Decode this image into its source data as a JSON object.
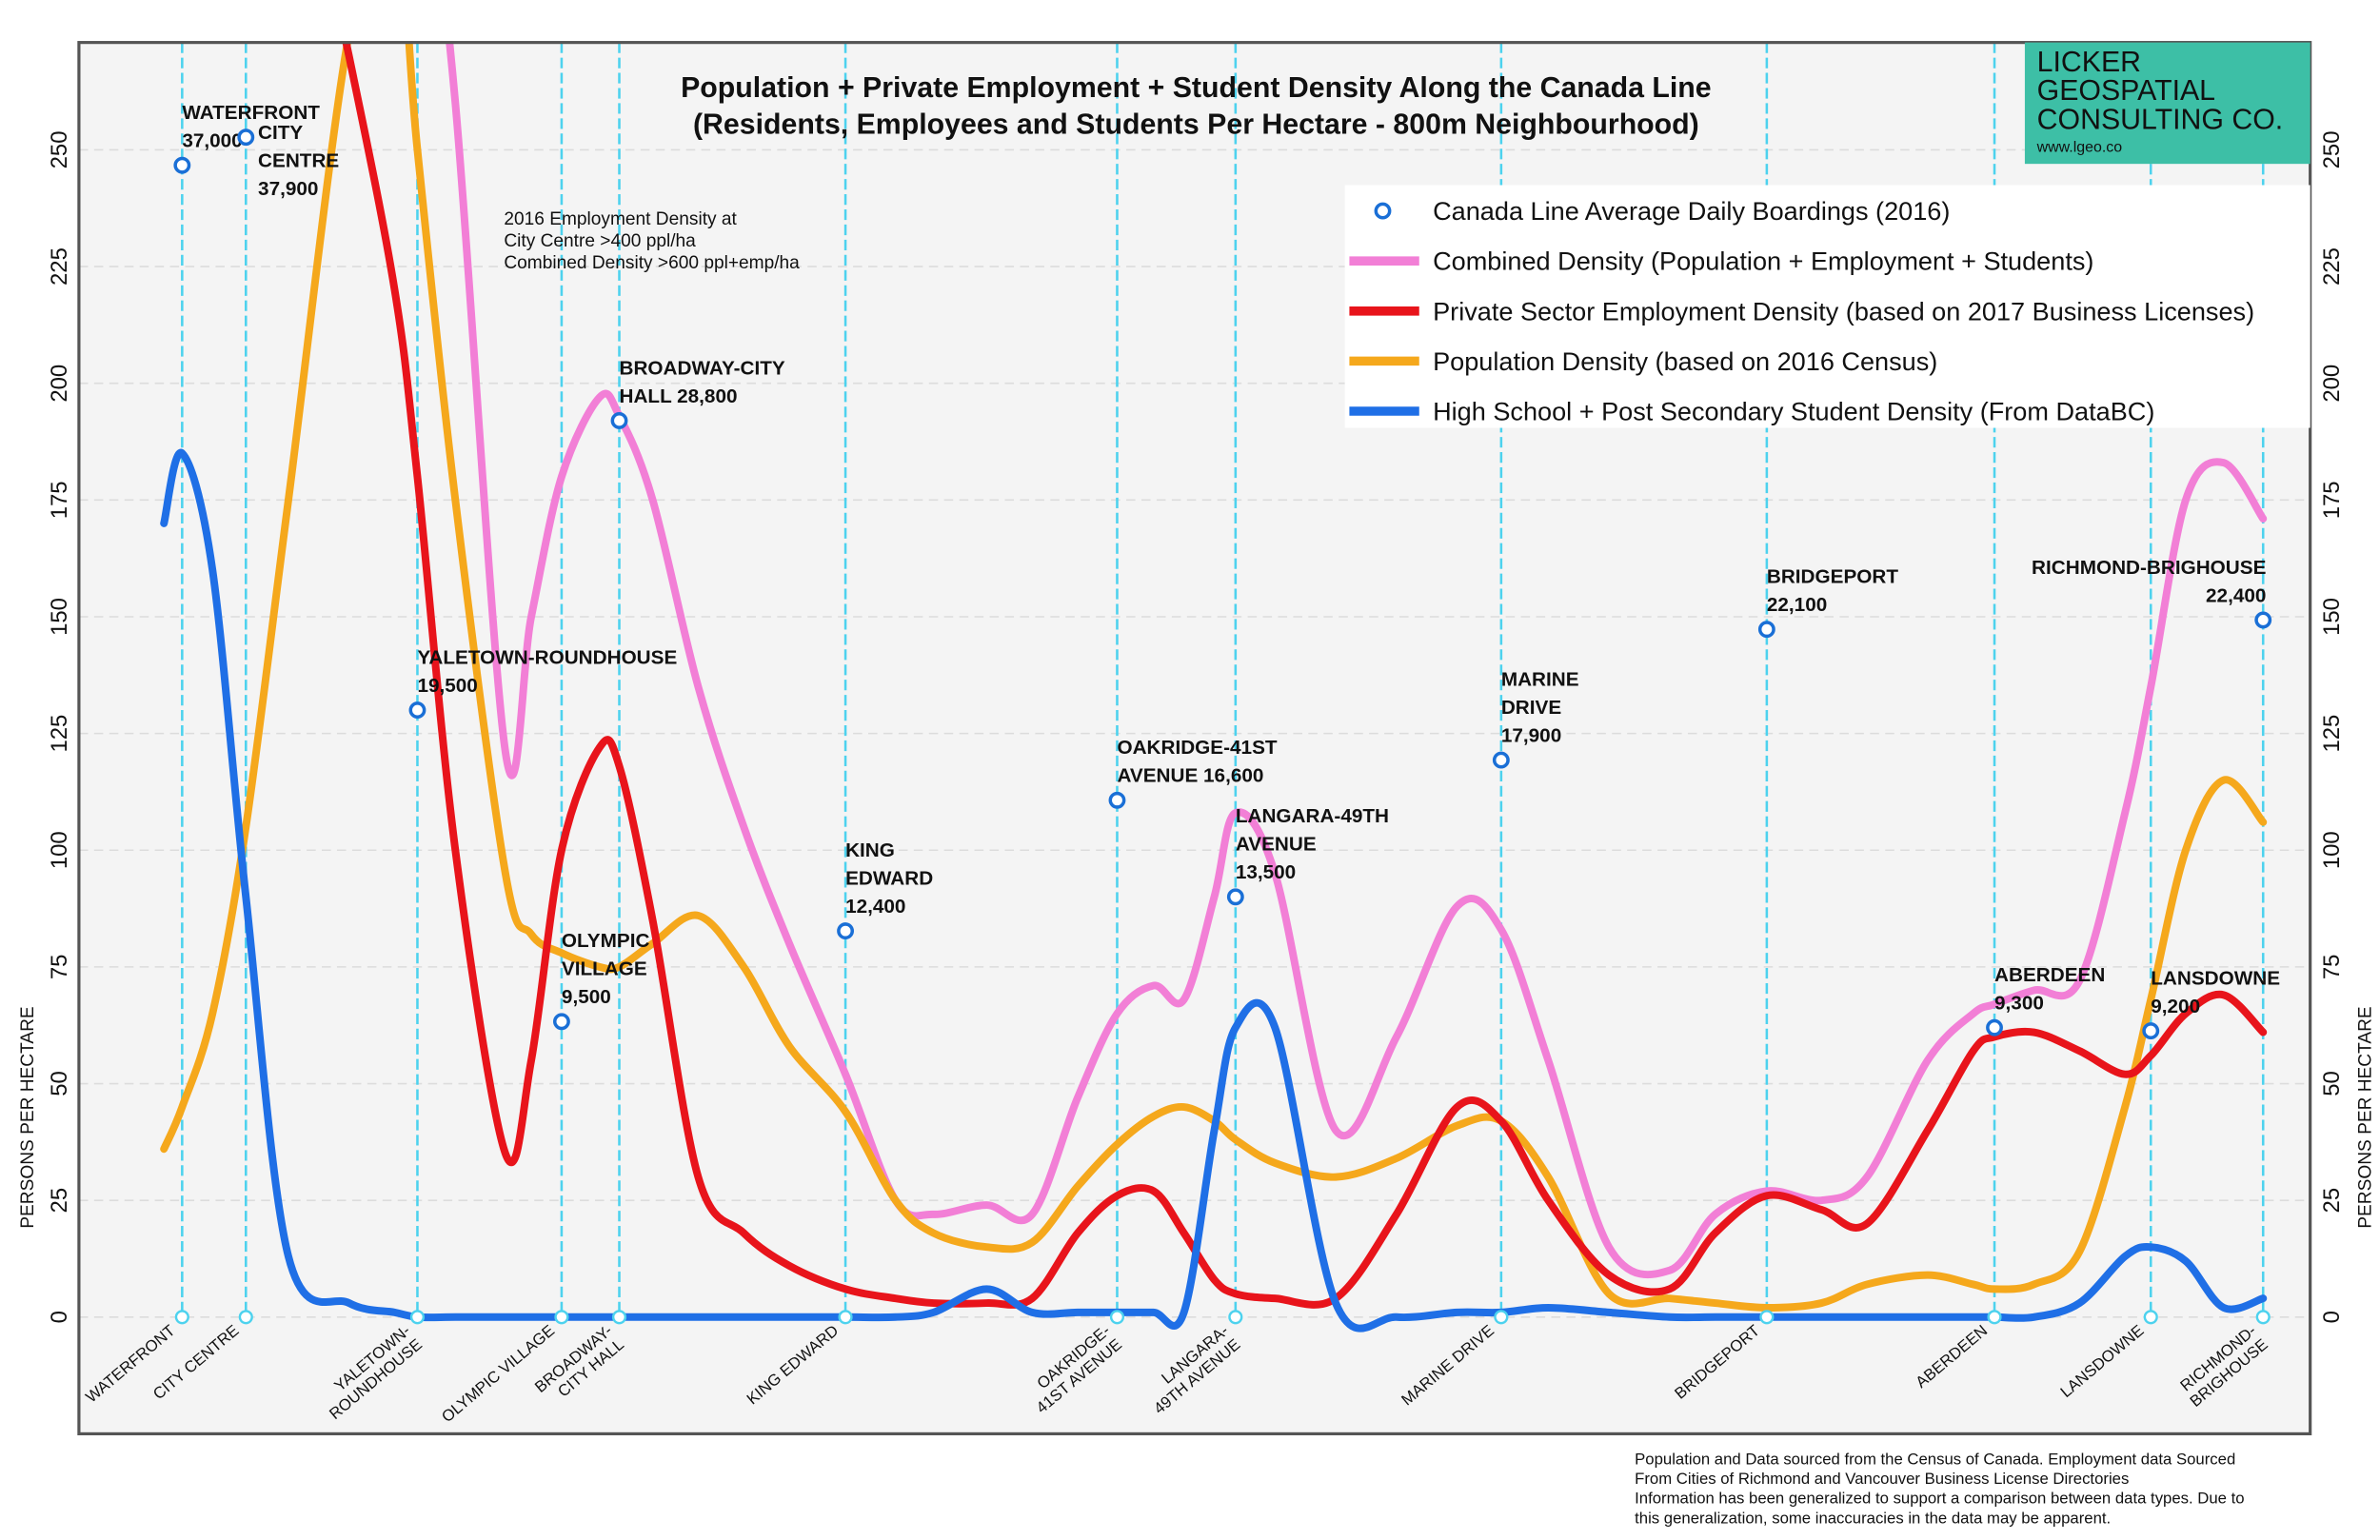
{
  "chart_data": {
    "type": "line",
    "title": [
      "Population + Private Employment + Student Density  Along the Canada Line",
      "(Residents, Employees and Students Per Hectare - 800m Neighbourhood)"
    ],
    "ylabel": "PERSONS PER HECTARE",
    "xlim": [
      5.2,
      152.2
    ],
    "ylim": [
      -25,
      273
    ],
    "yticks": [
      0,
      25,
      50,
      75,
      100,
      125,
      150,
      175,
      200,
      225,
      250
    ],
    "grid": true,
    "x": [
      10.8,
      12,
      14,
      16.2,
      19,
      23,
      26,
      27.5,
      30,
      33.3,
      35,
      37,
      39.5,
      40.8,
      43,
      46,
      49,
      52,
      55.7,
      59,
      61.5,
      65,
      68,
      71,
      73.6,
      76,
      78,
      80,
      81.4,
      84,
      88,
      92,
      96,
      98.9,
      102,
      106,
      110,
      113,
      116.4,
      120,
      123,
      127,
      130,
      131.4,
      134,
      137,
      140,
      141.7,
      144,
      146.5,
      149.1
    ],
    "stations": [
      {
        "x": 12,
        "label": [
          "WATERFRONT"
        ]
      },
      {
        "x": 16.2,
        "label": [
          "CITY CENTRE"
        ]
      },
      {
        "x": 27.5,
        "label": [
          "YALETOWN-",
          "ROUNDHOUSE"
        ]
      },
      {
        "x": 37,
        "label": [
          "OLYMPIC VILLAGE"
        ]
      },
      {
        "x": 40.8,
        "label": [
          "BROADWAY-",
          "CITY HALL"
        ]
      },
      {
        "x": 55.7,
        "label": [
          "KING EDWARD"
        ]
      },
      {
        "x": 73.6,
        "label": [
          "OAKRIDGE-",
          "41ST AVENUE"
        ]
      },
      {
        "x": 81.4,
        "label": [
          "LANGARA-",
          "49TH AVENUE"
        ]
      },
      {
        "x": 98.9,
        "label": [
          "MARINE DRIVE"
        ]
      },
      {
        "x": 116.4,
        "label": [
          "BRIDGEPORT"
        ]
      },
      {
        "x": 131.4,
        "label": [
          "ABERDEEN"
        ]
      },
      {
        "x": 141.7,
        "label": [
          "LANSDOWNE"
        ]
      },
      {
        "x": 149.1,
        "label": [
          "RICHMOND-",
          "BRIGHOUSE"
        ]
      }
    ],
    "boardings": {
      "name": "Canada Line Average Daily Boardings (2016)",
      "color": "#1a6fd6",
      "values": [
        246.7,
        252.7,
        130,
        63.3,
        192,
        82.7,
        110.7,
        90,
        119.3,
        147.3,
        62,
        61.3,
        149.3
      ],
      "annotations": [
        [
          "WATERFRONT",
          "37,000"
        ],
        [
          "CITY",
          "CENTRE",
          "37,900"
        ],
        [
          "YALETOWN-ROUNDHOUSE",
          "19,500"
        ],
        [
          "OLYMPIC",
          "VILLAGE",
          "9,500"
        ],
        [
          "BROADWAY-CITY",
          "HALL 28,800"
        ],
        [
          "KING",
          "EDWARD",
          "12,400"
        ],
        [
          "OAKRIDGE-41ST",
          "AVENUE 16,600"
        ],
        [
          "LANGARA-49TH",
          "AVENUE",
          "13,500"
        ],
        [
          "MARINE",
          "DRIVE",
          "17,900"
        ],
        [
          "BRIDGEPORT",
          "22,100"
        ],
        [
          "ABERDEEN",
          "9,300"
        ],
        [
          "LANSDOWNE",
          "9,200"
        ],
        [
          "RICHMOND-BRIGHOUSE",
          "22,400"
        ]
      ]
    },
    "series": [
      {
        "name": "Combined Density (Population + Employment + Students)",
        "color": "#f27fd6",
        "values": [
          null,
          null,
          null,
          null,
          null,
          null,
          null,
          330,
          260,
          121,
          150,
          180,
          197,
          193,
          175,
          135,
          105,
          80,
          52,
          25,
          22,
          24,
          22,
          47,
          65,
          71,
          68,
          90,
          108,
          95,
          40,
          60,
          88,
          83,
          55,
          15,
          10,
          22,
          27,
          25,
          30,
          55,
          65,
          67,
          70,
          72,
          108,
          135,
          175,
          183,
          171
        ]
      },
      {
        "name": "Private Sector Employment Density (based on 2017 Business Licenses)",
        "color": "#e8141b",
        "values": [
          null,
          null,
          null,
          null,
          330,
          270,
          220,
          180,
          100,
          35,
          55,
          100,
          122,
          118,
          85,
          30,
          18,
          11,
          6,
          4,
          3,
          3,
          4,
          18,
          26,
          27,
          18,
          8,
          5,
          4,
          4,
          22,
          45,
          42,
          25,
          9,
          6,
          18,
          26,
          23,
          20,
          40,
          57,
          60,
          61,
          57,
          52,
          56,
          65,
          69,
          61
        ]
      },
      {
        "name": "Population Density (based on 2016 Census)",
        "color": "#f5a81c",
        "values": [
          36,
          45,
          65,
          105,
          175,
          275,
          300,
          250,
          175,
          95,
          82,
          78,
          75,
          75,
          80,
          86,
          75,
          58,
          44,
          25,
          18,
          15,
          16,
          28,
          37,
          43,
          45,
          42,
          38,
          33,
          30,
          34,
          41,
          42,
          30,
          5,
          4,
          3,
          2,
          3,
          7,
          9,
          7,
          6,
          7,
          14,
          45,
          68,
          100,
          115,
          106
        ]
      },
      {
        "name": "High School + Post Secondary Student Density (From DataBC)",
        "color": "#1f6fe6",
        "values": [
          170,
          185,
          160,
          90,
          13,
          3,
          1,
          0,
          0,
          0,
          0,
          0,
          0,
          0,
          0,
          0,
          0,
          0,
          0,
          0,
          1,
          6,
          1,
          1,
          1,
          1,
          1,
          40,
          62,
          62,
          3,
          0,
          1,
          1,
          2,
          1,
          0,
          0,
          0,
          0,
          0,
          0,
          0,
          0,
          0,
          3,
          13,
          15,
          12,
          2,
          4
        ]
      }
    ],
    "note": [
      "2016 Employment Density at",
      "City Centre >400 ppl/ha",
      "Combined Density >600 ppl+emp/ha"
    ],
    "source": [
      "Population and Data sourced from the Census of Canada. Employment data Sourced",
      "From Cities of Richmond and Vancouver Business License Directories",
      "Information has been generalized to support a comparison between data types.  Due to",
      "this generalization, some inaccuracies in the data may be apparent."
    ],
    "logo": {
      "lines": [
        "LICKER",
        "GEOSPATIAL",
        "CONSULTING CO."
      ],
      "url": "www.lgeo.co"
    }
  }
}
